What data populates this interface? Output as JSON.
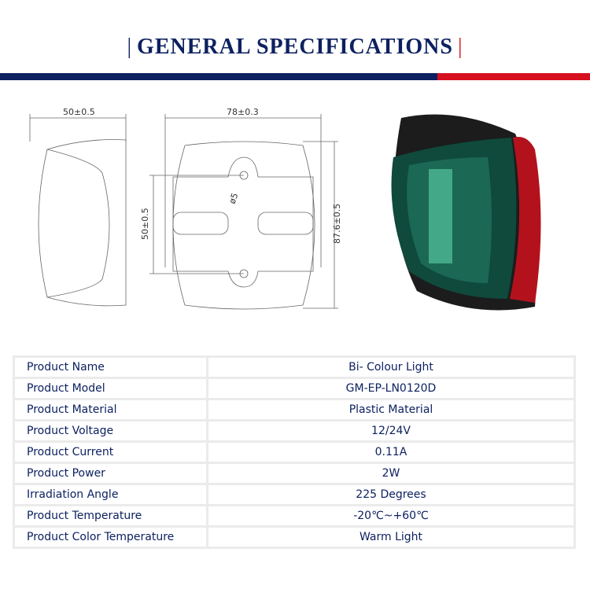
{
  "header": {
    "title": "GENERAL SPECIFICATIONS",
    "colors": {
      "navy": "#0d2160",
      "red": "#d6101f"
    }
  },
  "drawing": {
    "side_width": "50±0.5",
    "top_width": "78±0.3",
    "hole_spacing": "50±0.5",
    "height": "87.6±0.5",
    "hole_diameter": "ø5"
  },
  "specs": [
    {
      "label": "Product Name",
      "value": "Bi- Colour Light"
    },
    {
      "label": "Product Model",
      "value": "GM-EP-LN0120D"
    },
    {
      "label": "Product Material",
      "value": "Plastic Material"
    },
    {
      "label": "Product Voltage",
      "value": "12/24V"
    },
    {
      "label": "Product Current",
      "value": "0.11A"
    },
    {
      "label": "Product Power",
      "value": "2W"
    },
    {
      "label": "Irradiation Angle",
      "value": "225 Degrees"
    },
    {
      "label": "Product Temperature",
      "value": "-20℃~+60℃"
    },
    {
      "label": "Product Color Temperature",
      "value": "Warm Light"
    }
  ]
}
